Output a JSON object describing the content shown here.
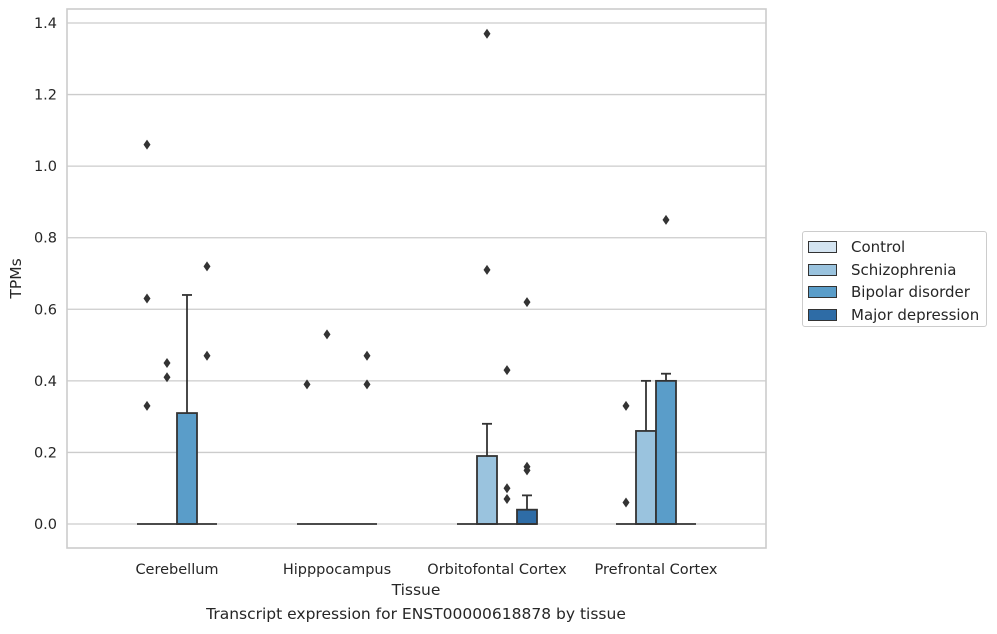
{
  "chart_data": {
    "type": "box",
    "caption": "Transcript expression for ENST00000618878 by tissue",
    "xlabel": "Tissue",
    "ylabel": "TPMs",
    "ylim": [
      -0.065,
      1.44
    ],
    "yticks": [
      0.0,
      0.2,
      0.4,
      0.6,
      0.8,
      1.0,
      1.2,
      1.4
    ],
    "ytick_labels": [
      "0.0",
      "0.2",
      "0.4",
      "0.6",
      "0.8",
      "1.0",
      "1.2",
      "1.4"
    ],
    "categories": [
      "Cerebellum",
      "Hipppocampus",
      "Orbitofontal Cortex",
      "Prefrontal Cortex"
    ],
    "grid": true,
    "legend_position": "right",
    "series": [
      {
        "name": "Control",
        "color": "#d4e4f1",
        "boxes": [
          {
            "q1": 0,
            "median": 0,
            "q3": 0,
            "whisker_low": 0,
            "whisker_high": 0,
            "outliers": [
              1.06,
              0.63,
              0.33
            ]
          },
          {
            "q1": 0,
            "median": 0,
            "q3": 0,
            "whisker_low": 0,
            "whisker_high": 0,
            "outliers": [
              0.39
            ]
          },
          {
            "q1": 0,
            "median": 0,
            "q3": 0,
            "whisker_low": 0,
            "whisker_high": 0,
            "outliers": []
          },
          {
            "q1": 0,
            "median": 0,
            "q3": 0,
            "whisker_low": 0,
            "whisker_high": 0,
            "outliers": [
              0.33,
              0.06
            ]
          }
        ]
      },
      {
        "name": "Schizophrenia",
        "color": "#9ac3de",
        "boxes": [
          {
            "q1": 0,
            "median": 0,
            "q3": 0,
            "whisker_low": 0,
            "whisker_high": 0,
            "outliers": [
              0.45,
              0.41
            ]
          },
          {
            "q1": 0,
            "median": 0,
            "q3": 0,
            "whisker_low": 0,
            "whisker_high": 0,
            "outliers": [
              0.53
            ]
          },
          {
            "q1": 0,
            "median": 0,
            "q3": 0.19,
            "whisker_low": 0,
            "whisker_high": 0.28,
            "outliers": [
              1.37,
              0.71
            ]
          },
          {
            "q1": 0,
            "median": 0,
            "q3": 0.26,
            "whisker_low": 0,
            "whisker_high": 0.4,
            "outliers": []
          }
        ]
      },
      {
        "name": "Bipolar disorder",
        "color": "#5a9dc9",
        "boxes": [
          {
            "q1": 0,
            "median": 0,
            "q3": 0.31,
            "whisker_low": 0,
            "whisker_high": 0.64,
            "outliers": []
          },
          {
            "q1": 0,
            "median": 0,
            "q3": 0,
            "whisker_low": 0,
            "whisker_high": 0,
            "outliers": []
          },
          {
            "q1": 0,
            "median": 0,
            "q3": 0,
            "whisker_low": 0,
            "whisker_high": 0,
            "outliers": [
              0.43,
              0.1,
              0.07
            ]
          },
          {
            "q1": 0,
            "median": 0,
            "q3": 0.4,
            "whisker_low": 0,
            "whisker_high": 0.42,
            "outliers": [
              0.85
            ]
          }
        ]
      },
      {
        "name": "Major depression",
        "color": "#2e6ca6",
        "boxes": [
          {
            "q1": 0,
            "median": 0,
            "q3": 0,
            "whisker_low": 0,
            "whisker_high": 0,
            "outliers": [
              0.72,
              0.47
            ]
          },
          {
            "q1": 0,
            "median": 0,
            "q3": 0,
            "whisker_low": 0,
            "whisker_high": 0,
            "outliers": [
              0.47,
              0.39
            ]
          },
          {
            "q1": 0,
            "median": 0,
            "q3": 0.04,
            "whisker_low": 0,
            "whisker_high": 0.08,
            "outliers": [
              0.62,
              0.16,
              0.15
            ]
          },
          {
            "q1": 0,
            "median": 0,
            "q3": 0,
            "whisker_low": 0,
            "whisker_high": 0,
            "outliers": []
          }
        ]
      }
    ]
  }
}
